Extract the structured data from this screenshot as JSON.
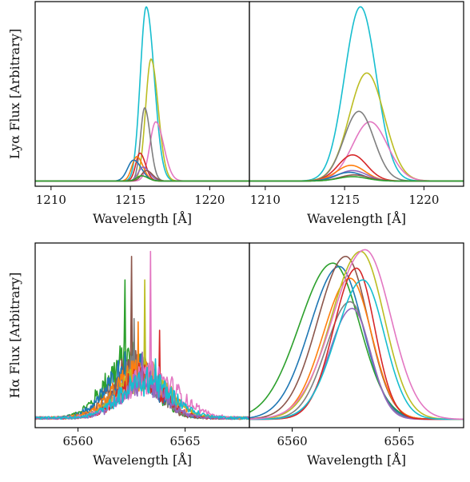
{
  "chart_data": {
    "type": "line",
    "panels": [
      {
        "id": "lya-observed",
        "xlim": [
          1209,
          1222.5
        ],
        "ylim": [
          -0.03,
          1.03
        ],
        "xticks": [
          1210,
          1215,
          1220
        ],
        "xlabel": "Wavelength [Å]",
        "ylabel": "Lyα Flux [Arbitrary]",
        "show_yticks": false,
        "noisy": false,
        "series": [
          {
            "color": "#17becf",
            "center": 1216.0,
            "amp": 1.0,
            "sigma": 0.5
          },
          {
            "color": "#bcbd22",
            "center": 1216.3,
            "amp": 0.7,
            "sigma": 0.45
          },
          {
            "color": "#e377c2",
            "center": 1216.6,
            "amp": 0.34,
            "sigma": 0.5
          },
          {
            "color": "#7f7f7f",
            "center": 1215.9,
            "amp": 0.42,
            "sigma": 0.35
          },
          {
            "color": "#d62728",
            "center": 1215.6,
            "amp": 0.16,
            "sigma": 0.35
          },
          {
            "color": "#ff7f0e",
            "center": 1215.4,
            "amp": 0.14,
            "sigma": 0.4
          },
          {
            "color": "#1f77b4",
            "center": 1215.2,
            "amp": 0.12,
            "sigma": 0.5
          },
          {
            "color": "#9467bd",
            "center": 1215.8,
            "amp": 0.08,
            "sigma": 0.4
          },
          {
            "color": "#8c564b",
            "center": 1216.0,
            "amp": 0.06,
            "sigma": 0.4
          },
          {
            "color": "#2ca02c",
            "center": 1215.7,
            "amp": 0.03,
            "sigma": 0.4
          }
        ]
      },
      {
        "id": "lya-model",
        "xlim": [
          1209,
          1222.5
        ],
        "ylim": [
          -0.03,
          1.03
        ],
        "xticks": [
          1210,
          1215,
          1220
        ],
        "xlabel": "Wavelength [Å]",
        "ylabel": "",
        "show_yticks": false,
        "noisy": false,
        "series": [
          {
            "color": "#17becf",
            "center": 1216.0,
            "amp": 1.0,
            "sigma": 1.0
          },
          {
            "color": "#bcbd22",
            "center": 1216.4,
            "amp": 0.62,
            "sigma": 1.1
          },
          {
            "color": "#e377c2",
            "center": 1216.6,
            "amp": 0.34,
            "sigma": 1.1
          },
          {
            "color": "#7f7f7f",
            "center": 1215.9,
            "amp": 0.4,
            "sigma": 0.95
          },
          {
            "color": "#d62728",
            "center": 1215.5,
            "amp": 0.15,
            "sigma": 0.9
          },
          {
            "color": "#ff7f0e",
            "center": 1215.4,
            "amp": 0.09,
            "sigma": 0.9
          },
          {
            "color": "#9467bd",
            "center": 1215.5,
            "amp": 0.06,
            "sigma": 0.9
          },
          {
            "color": "#1f77b4",
            "center": 1215.3,
            "amp": 0.05,
            "sigma": 0.9
          },
          {
            "color": "#8c564b",
            "center": 1215.6,
            "amp": 0.035,
            "sigma": 0.9
          },
          {
            "color": "#2ca02c",
            "center": 1215.5,
            "amp": 0.025,
            "sigma": 0.9
          }
        ]
      },
      {
        "id": "ha-observed",
        "xlim": [
          6558,
          6568
        ],
        "ylim": [
          -0.05,
          1.05
        ],
        "xticks": [
          6560,
          6565
        ],
        "xlabel": "Wavelength [Å]",
        "ylabel": "Hα Flux [Arbitrary]",
        "show_yticks": false,
        "noisy": true,
        "series": [
          {
            "color": "#2ca02c",
            "center": 6562.4,
            "amp": 0.34,
            "sigma": 1.1,
            "spike_x": 6562.2,
            "spike_h": 0.83
          },
          {
            "color": "#8c564b",
            "center": 6562.6,
            "amp": 0.32,
            "sigma": 1.0,
            "spike_x": 6562.5,
            "spike_h": 0.97
          },
          {
            "color": "#1f77b4",
            "center": 6562.5,
            "amp": 0.3,
            "sigma": 1.1,
            "spike_x": 6562.6,
            "spike_h": 0.45
          },
          {
            "color": "#7f7f7f",
            "center": 6562.8,
            "amp": 0.28,
            "sigma": 1.0,
            "spike_x": 6562.6,
            "spike_h": 0.6
          },
          {
            "color": "#ff7f0e",
            "center": 6562.9,
            "amp": 0.26,
            "sigma": 1.2,
            "spike_x": 6562.8,
            "spike_h": 0.58
          },
          {
            "color": "#bcbd22",
            "center": 6563.1,
            "amp": 0.26,
            "sigma": 1.1,
            "spike_x": 6563.1,
            "spike_h": 0.83
          },
          {
            "color": "#d62728",
            "center": 6563.0,
            "amp": 0.24,
            "sigma": 1.0,
            "spike_x": 6563.8,
            "spike_h": 0.53
          },
          {
            "color": "#e377c2",
            "center": 6563.4,
            "amp": 0.24,
            "sigma": 1.3,
            "spike_x": 6563.4,
            "spike_h": 1.0
          },
          {
            "color": "#9467bd",
            "center": 6563.0,
            "amp": 0.22,
            "sigma": 1.0,
            "spike_x": 6563.0,
            "spike_h": 0.4
          },
          {
            "color": "#17becf",
            "center": 6563.2,
            "amp": 0.22,
            "sigma": 1.2,
            "spike_x": 6563.6,
            "spike_h": 0.36
          }
        ]
      },
      {
        "id": "ha-model",
        "xlim": [
          6558,
          6568
        ],
        "ylim": [
          -0.05,
          1.05
        ],
        "xticks": [
          6560,
          6565
        ],
        "xlabel": "Wavelength [Å]",
        "ylabel": "",
        "show_yticks": false,
        "noisy": false,
        "series": [
          {
            "color": "#2ca02c",
            "center": 6561.9,
            "amp": 0.93,
            "sigma": 1.25
          },
          {
            "color": "#1f77b4",
            "center": 6562.2,
            "amp": 0.91,
            "sigma": 1.1
          },
          {
            "color": "#8c564b",
            "center": 6562.5,
            "amp": 0.97,
            "sigma": 1.05
          },
          {
            "color": "#ff7f0e",
            "center": 6562.7,
            "amp": 0.84,
            "sigma": 1.0
          },
          {
            "color": "#7f7f7f",
            "center": 6562.7,
            "amp": 0.7,
            "sigma": 0.9
          },
          {
            "color": "#9467bd",
            "center": 6562.8,
            "amp": 0.66,
            "sigma": 0.85
          },
          {
            "color": "#d62728",
            "center": 6563.0,
            "amp": 0.9,
            "sigma": 0.85
          },
          {
            "color": "#bcbd22",
            "center": 6563.2,
            "amp": 1.0,
            "sigma": 1.1
          },
          {
            "color": "#17becf",
            "center": 6563.3,
            "amp": 0.83,
            "sigma": 1.0
          },
          {
            "color": "#e377c2",
            "center": 6563.4,
            "amp": 1.01,
            "sigma": 1.2
          }
        ]
      }
    ]
  }
}
